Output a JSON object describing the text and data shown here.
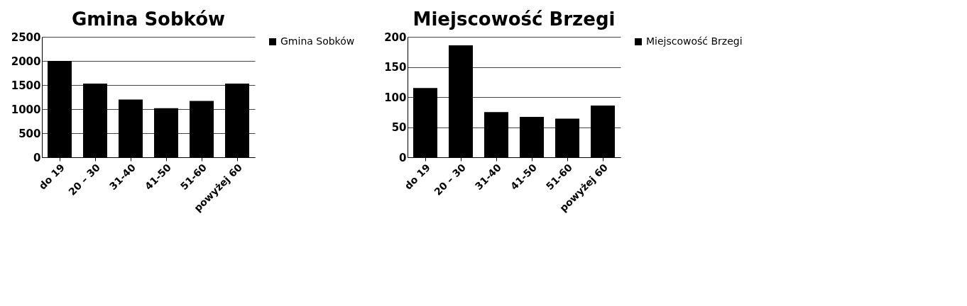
{
  "chart_data": [
    {
      "type": "bar",
      "title": "Gmina Sobków",
      "categories": [
        "do 19",
        "20 – 30",
        "31-40",
        "41-50",
        "51-60",
        "powyżej 60"
      ],
      "series": [
        {
          "name": "Gmina Sobków",
          "color": "#000000",
          "values": [
            2000,
            1530,
            1200,
            1020,
            1170,
            1530
          ]
        }
      ],
      "ylim": [
        0,
        2500
      ],
      "yticks": [
        0,
        500,
        1000,
        1500,
        2000,
        2500
      ],
      "grid": "y",
      "legend": "right"
    },
    {
      "type": "bar",
      "title": "Miejscowość Brzegi",
      "categories": [
        "do 19",
        "20 – 30",
        "31-40",
        "41-50",
        "51-60",
        "powyżej 60"
      ],
      "series": [
        {
          "name": "Miejscowość Brzegi",
          "color": "#000000",
          "values": [
            115,
            186,
            75,
            67,
            64,
            86
          ]
        }
      ],
      "ylim": [
        0,
        200
      ],
      "yticks": [
        0,
        50,
        100,
        150,
        200
      ],
      "grid": "y",
      "legend": "right"
    }
  ]
}
